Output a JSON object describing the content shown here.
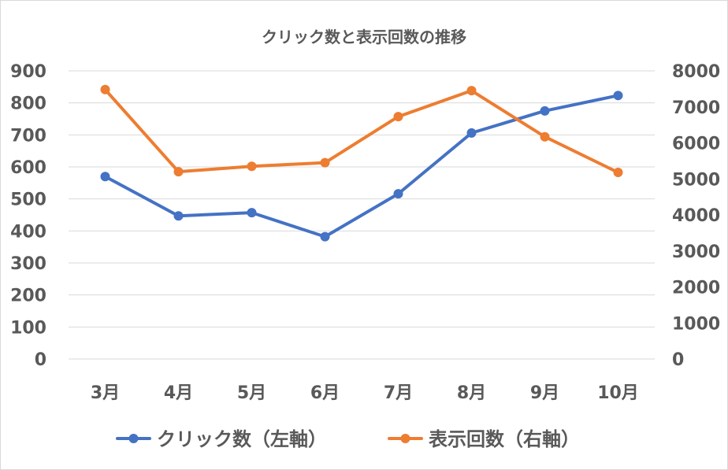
{
  "chart_data": {
    "type": "line",
    "title": "クリック数と表示回数の推移",
    "categories": [
      "3月",
      "4月",
      "5月",
      "6月",
      "7月",
      "8月",
      "9月",
      "10月"
    ],
    "series": [
      {
        "name": "クリック数（左軸）",
        "axis": "left",
        "color": "#4472c4",
        "values": [
          570,
          447,
          457,
          382,
          516,
          706,
          775,
          823
        ]
      },
      {
        "name": "表示回数（右軸）",
        "axis": "right",
        "color": "#ed7d31",
        "values": [
          7480,
          5200,
          5350,
          5450,
          6730,
          7450,
          6170,
          5180
        ]
      }
    ],
    "y_left": {
      "min": 0,
      "max": 900,
      "ticks": [
        "0",
        "100",
        "200",
        "300",
        "400",
        "500",
        "600",
        "700",
        "800",
        "900"
      ]
    },
    "y_right": {
      "min": 0,
      "max": 8000,
      "ticks": [
        "0",
        "1000",
        "2000",
        "3000",
        "4000",
        "5000",
        "6000",
        "7000",
        "8000"
      ]
    },
    "grid": true,
    "legend_position": "bottom"
  },
  "colors": {
    "grid": "#d9d9d9",
    "text": "#595959"
  }
}
